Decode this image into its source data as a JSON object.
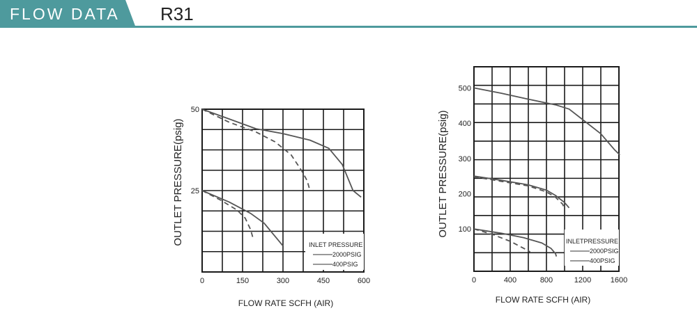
{
  "header": {
    "title": "FLOW DATA",
    "model": "R31",
    "accent_color": "#4e9a9d"
  },
  "chart_data": [
    {
      "type": "line",
      "title": "",
      "xlabel": "FLOW RATE SCFH (AIR)",
      "ylabel": "OUTLET PRESSURE(psig)",
      "xlim": [
        0,
        600
      ],
      "ylim": [
        0,
        50
      ],
      "x_ticks": [
        0,
        150,
        300,
        450,
        600
      ],
      "y_ticks": [
        25,
        50
      ],
      "grid": true,
      "legend": {
        "title": "INLET PRESSURE",
        "position": "bottom-right",
        "entries": [
          "2000PSIG",
          "400PSIG"
        ]
      },
      "series": [
        {
          "name": "2000PSIG",
          "style": "solid",
          "points": [
            [
              0,
              50
            ],
            [
              100,
              47
            ],
            [
              200,
              44
            ],
            [
              300,
              42.5
            ],
            [
              400,
              40.5
            ],
            [
              470,
              38
            ],
            [
              520,
              33
            ],
            [
              560,
              25
            ],
            [
              590,
              23
            ]
          ]
        },
        {
          "name": "400PSIG",
          "style": "dashed",
          "points": [
            [
              0,
              50
            ],
            [
              100,
              46
            ],
            [
              200,
              43
            ],
            [
              270,
              40
            ],
            [
              330,
              36
            ],
            [
              370,
              31
            ],
            [
              390,
              28
            ],
            [
              400,
              25
            ]
          ]
        },
        {
          "name": "2000PSIG",
          "style": "solid",
          "points": [
            [
              0,
              25
            ],
            [
              100,
              21.5
            ],
            [
              180,
              18
            ],
            [
              230,
              15
            ],
            [
              260,
              12
            ],
            [
              280,
              10
            ],
            [
              300,
              8
            ]
          ]
        },
        {
          "name": "400PSIG",
          "style": "dashed",
          "points": [
            [
              0,
              25
            ],
            [
              70,
              22
            ],
            [
              130,
              19
            ],
            [
              160,
              16.5
            ],
            [
              180,
              13
            ],
            [
              190,
              10
            ]
          ]
        }
      ]
    },
    {
      "type": "line",
      "title": "",
      "xlabel": "FLOW RATE SCFH (AIR)",
      "ylabel": "OUTLET PRESSURE(psig)",
      "xlim": [
        0,
        1600
      ],
      "ylim": [
        -20,
        560
      ],
      "x_ticks": [
        0,
        400,
        800,
        1200,
        1600
      ],
      "y_ticks": [
        100,
        200,
        300,
        400,
        500
      ],
      "grid": true,
      "legend": {
        "title": "INLETPRESSURE",
        "position": "bottom-right",
        "entries": [
          "2000PSIG",
          "400PSIG"
        ]
      },
      "series": [
        {
          "name": "2000PSIG",
          "style": "solid",
          "points": [
            [
              0,
              500
            ],
            [
              300,
              485
            ],
            [
              600,
              468
            ],
            [
              900,
              452
            ],
            [
              1050,
              440
            ],
            [
              1200,
              410
            ],
            [
              1400,
              370
            ],
            [
              1550,
              325
            ],
            [
              1610,
              310
            ]
          ]
        },
        {
          "name": "400PSIG",
          "style": "dashed",
          "points": [
            [
              0,
              248
            ],
            [
              300,
              235
            ],
            [
              600,
              222
            ],
            [
              800,
              205
            ],
            [
              900,
              190
            ],
            [
              980,
              170
            ],
            [
              1000,
              155
            ]
          ]
        },
        {
          "name": "2000PSIG",
          "style": "solid",
          "points": [
            [
              0,
              250
            ],
            [
              300,
              238
            ],
            [
              600,
              225
            ],
            [
              800,
              210
            ],
            [
              900,
              195
            ],
            [
              1000,
              175
            ],
            [
              1050,
              160
            ]
          ]
        },
        {
          "name": "400PSIG",
          "style": "dashed",
          "points": [
            [
              0,
              100
            ],
            [
              200,
              85
            ],
            [
              400,
              65
            ],
            [
              550,
              45
            ],
            [
              620,
              35
            ]
          ]
        },
        {
          "name": "2000PSIG",
          "style": "solid",
          "points": [
            [
              0,
              100
            ],
            [
              300,
              88
            ],
            [
              550,
              75
            ],
            [
              750,
              60
            ],
            [
              850,
              45
            ],
            [
              900,
              30
            ],
            [
              910,
              22
            ]
          ]
        }
      ]
    }
  ]
}
